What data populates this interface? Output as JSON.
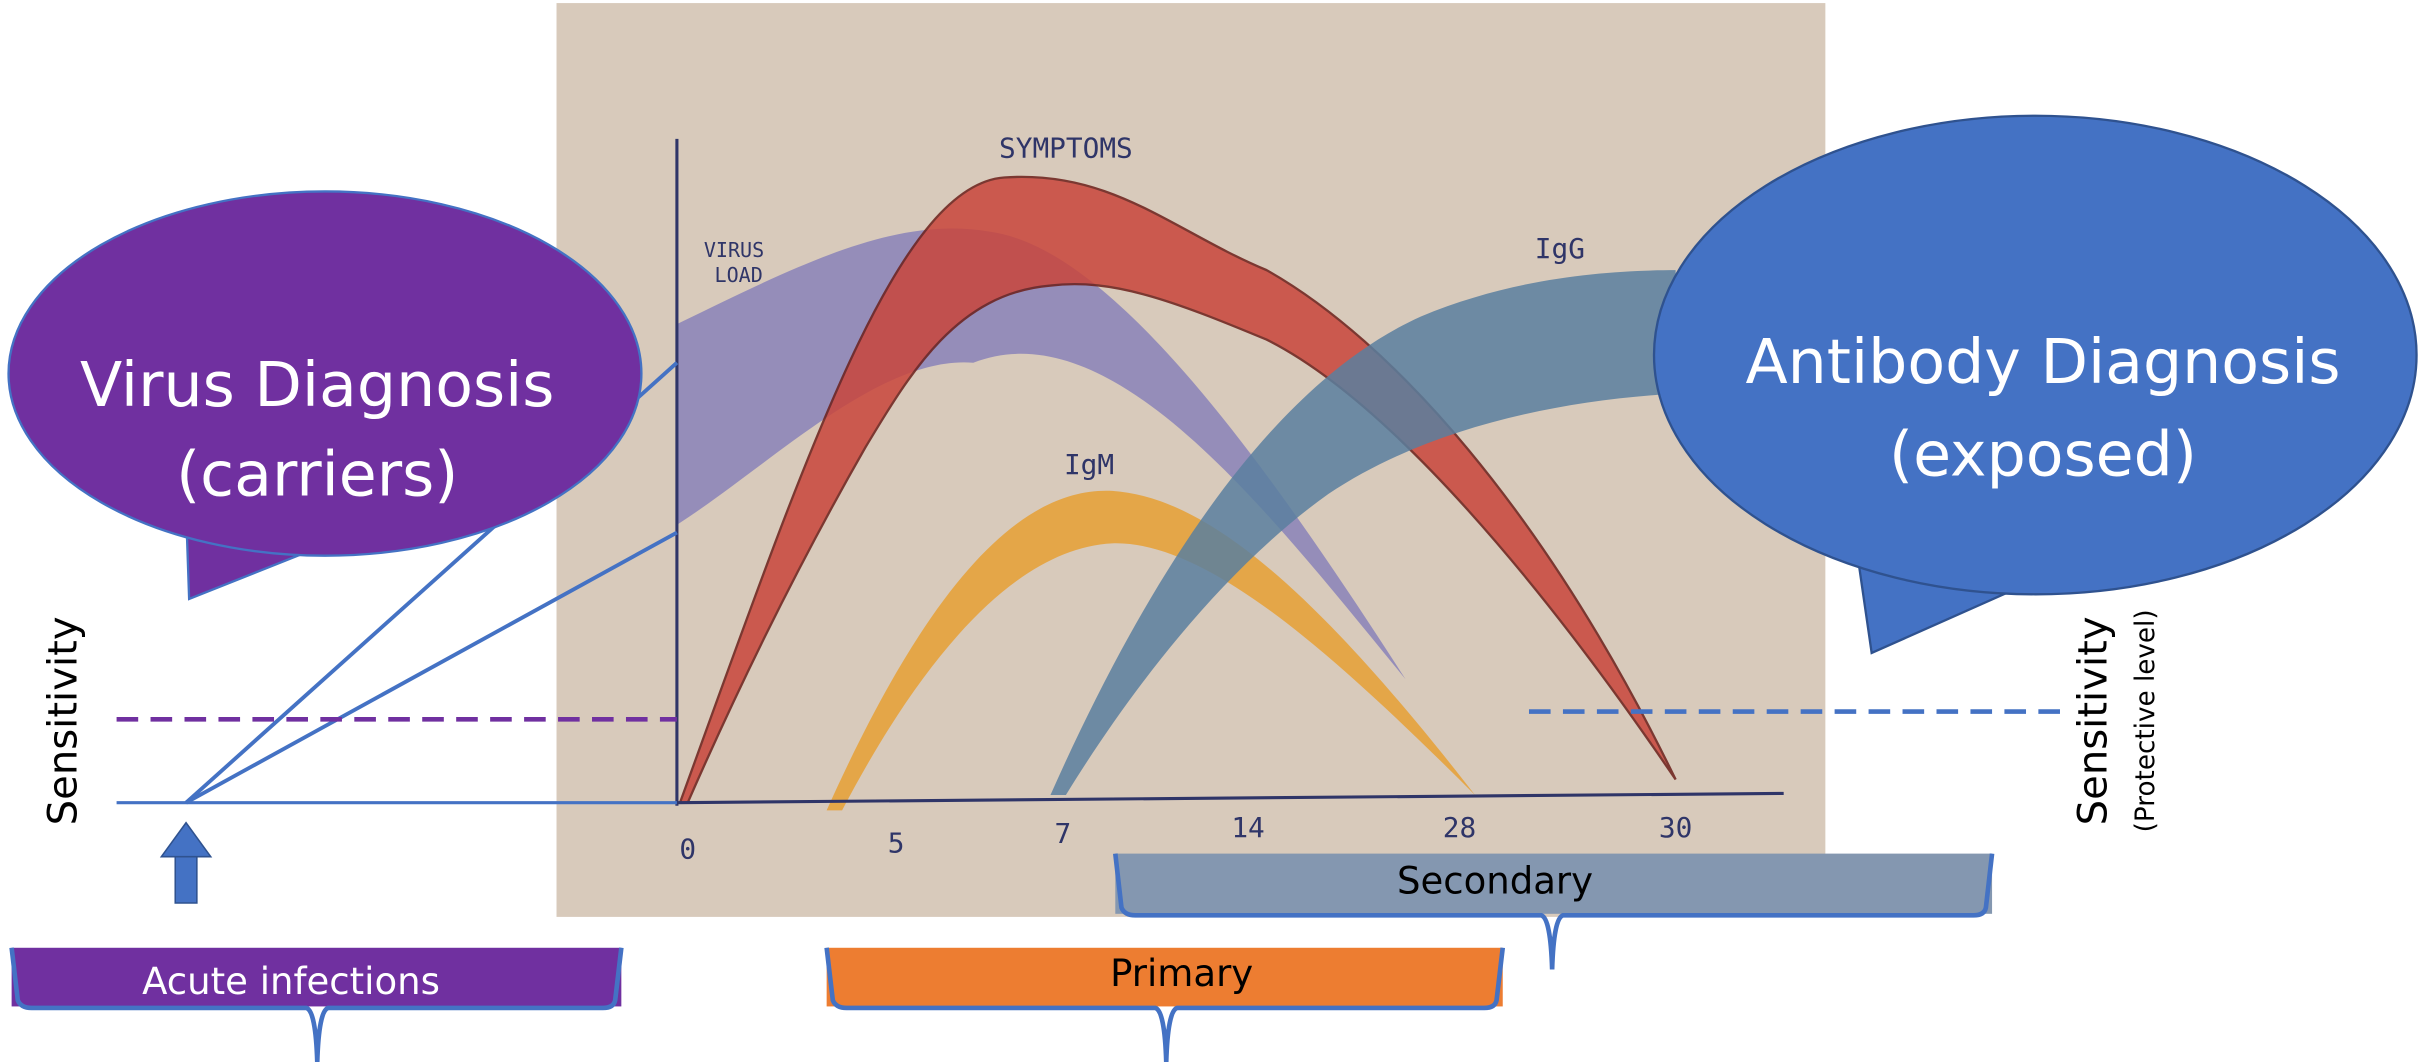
{
  "bubbles": [
    {
      "lines": [
        "Virus Diagnosis",
        "(carriers)"
      ]
    },
    {
      "lines": [
        "Antibody Diagnosis",
        "(exposed)"
      ]
    }
  ],
  "sensitivity_labels": {
    "left": "Sensitivity",
    "right": "Sensitivity",
    "right_note": "(Protective level)"
  },
  "brackets": [
    {
      "label": "Secondary"
    },
    {
      "label": "Primary"
    },
    {
      "label": "Acute infections"
    }
  ],
  "sketch": {
    "curve_labels": [
      "SYMPTOMS",
      "VIRUS",
      "LOAD",
      "IgG",
      "IgM"
    ],
    "x_ticks": [
      "0",
      "5",
      "7",
      "14",
      "28",
      "30"
    ]
  }
}
